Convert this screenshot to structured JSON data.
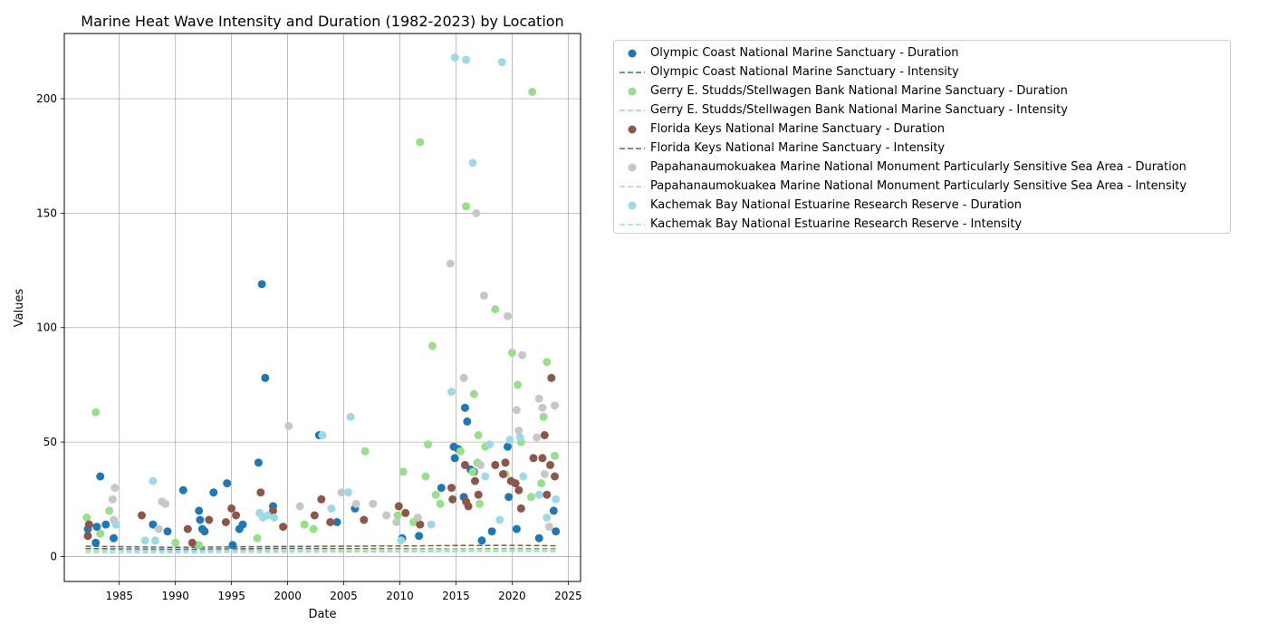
{
  "chart_data": {
    "type": "scatter",
    "title": "Marine Heat Wave Intensity and Duration (1982-2023) by Location",
    "xlabel": "Date",
    "ylabel": "Values",
    "xlim": [
      1980.1,
      2026.1
    ],
    "ylim": [
      -10.9,
      228.5
    ],
    "xticks": [
      1985,
      1990,
      1995,
      2000,
      2005,
      2010,
      2015,
      2020,
      2025
    ],
    "yticks": [
      0,
      50,
      100,
      150,
      200
    ],
    "grid": true,
    "legend_position": "outside-right",
    "series": [
      {
        "name": "Olympic Coast National Marine Sanctuary - Duration",
        "kind": "points",
        "color": "#1f77b4",
        "x": [
          1982.2,
          1982.9,
          1983.0,
          1983.3,
          1983.8,
          1984.5,
          1988.0,
          1989.3,
          1990.7,
          1992.1,
          1992.2,
          1992.4,
          1992.6,
          1993.4,
          1994.6,
          1995.1,
          1995.7,
          1996.0,
          1997.4,
          1997.7,
          1998.0,
          1998.7,
          2002.8,
          2004.4,
          2006.0,
          2010.2,
          2011.7,
          2013.7,
          2014.8,
          2014.9,
          2015.2,
          2015.7,
          2015.8,
          2016.0,
          2016.3,
          2016.6,
          2017.3,
          2018.2,
          2019.6,
          2019.7,
          2020.4,
          2022.4,
          2023.7,
          2023.9
        ],
        "y": [
          12,
          6,
          13,
          35,
          14,
          8,
          14,
          11,
          29,
          20,
          16,
          12,
          11,
          28,
          32,
          5,
          12,
          14,
          41,
          119,
          78,
          22,
          53,
          15,
          21,
          8,
          9,
          30,
          48,
          43,
          47,
          26,
          65,
          59,
          38,
          37,
          7,
          11,
          48,
          26,
          12,
          8,
          20,
          11
        ]
      },
      {
        "name": "Olympic Coast National Marine Sanctuary - Intensity",
        "kind": "line",
        "color": "#1f77b4",
        "x": [
          1982,
          1990,
          2000,
          2010,
          2015,
          2020,
          2024
        ],
        "y": [
          3.5,
          3.2,
          3.6,
          3.4,
          3.3,
          3.5,
          3.4
        ]
      },
      {
        "name": "Gerry E. Studds/Stellwagen Bank National Marine Sanctuary - Duration",
        "kind": "points",
        "color": "#98df8a",
        "x": [
          1982.1,
          1982.9,
          1983.3,
          1984.1,
          1990.0,
          1992.1,
          1997.3,
          2001.5,
          2002.3,
          2006.9,
          2009.8,
          2010.3,
          2011.2,
          2011.8,
          2012.3,
          2012.5,
          2012.9,
          2013.2,
          2013.6,
          2015.4,
          2015.9,
          2016.5,
          2016.6,
          2016.9,
          2017.0,
          2017.1,
          2017.6,
          2018.5,
          2019.4,
          2020.0,
          2020.5,
          2020.8,
          2021.7,
          2021.8,
          2022.6,
          2022.8,
          2023.1,
          2023.8
        ],
        "y": [
          17,
          63,
          10,
          20,
          6,
          5,
          8,
          14,
          12,
          46,
          18,
          37,
          15,
          181,
          35,
          49,
          92,
          27,
          23,
          46,
          153,
          37,
          71,
          41,
          53,
          23,
          48,
          108,
          36,
          89,
          75,
          50,
          26,
          203,
          32,
          61,
          85,
          44
        ]
      },
      {
        "name": "Gerry E. Studds/Stellwagen Bank National Marine Sanctuary - Intensity",
        "kind": "line",
        "color": "#98df8a",
        "x": [
          1982,
          1990,
          2000,
          2010,
          2015,
          2020,
          2024
        ],
        "y": [
          3.0,
          2.6,
          3.0,
          3.1,
          3.2,
          3.3,
          3.2
        ]
      },
      {
        "name": "Florida Keys National Marine Sanctuary - Duration",
        "kind": "points",
        "color": "#8c564b",
        "x": [
          1982.2,
          1982.3,
          1987.0,
          1991.1,
          1991.5,
          1993.0,
          1994.5,
          1995.0,
          1995.4,
          1997.6,
          1998.7,
          1999.6,
          2002.4,
          2003.0,
          2003.8,
          2006.8,
          2009.9,
          2010.5,
          2011.8,
          2014.6,
          2014.7,
          2015.8,
          2015.9,
          2016.1,
          2016.7,
          2017.0,
          2018.5,
          2019.2,
          2019.4,
          2019.9,
          2020.3,
          2020.6,
          2020.8,
          2021.9,
          2022.7,
          2022.9,
          2023.1,
          2023.4,
          2023.5,
          2023.8
        ],
        "y": [
          9,
          14,
          18,
          12,
          6,
          16,
          15,
          21,
          18,
          28,
          20,
          13,
          18,
          25,
          15,
          16,
          22,
          19,
          14,
          30,
          25,
          40,
          24,
          22,
          33,
          27,
          40,
          36,
          41,
          33,
          32,
          29,
          21,
          43,
          43,
          53,
          27,
          40,
          78,
          35
        ]
      },
      {
        "name": "Florida Keys National Marine Sanctuary - Intensity",
        "kind": "line",
        "color": "#8c564b",
        "x": [
          1982,
          1990,
          2000,
          2010,
          2015,
          2020,
          2024
        ],
        "y": [
          4.5,
          4.0,
          4.4,
          4.6,
          4.8,
          4.9,
          4.7
        ]
      },
      {
        "name": "Papahanaumokuakea Marine National Monument Particularly Sensitive Sea Area - Duration",
        "kind": "points",
        "color": "#c7c7c7",
        "x": [
          1984.4,
          1984.5,
          1984.6,
          1988.5,
          1988.8,
          1989.1,
          2000.1,
          2001.1,
          2004.8,
          2006.1,
          2007.6,
          2008.8,
          2009.7,
          2011.6,
          2014.5,
          2015.7,
          2016.8,
          2017.2,
          2017.5,
          2019.6,
          2020.4,
          2020.6,
          2020.9,
          2022.2,
          2022.4,
          2022.7,
          2022.9,
          2023.3,
          2023.8
        ],
        "y": [
          25,
          16,
          30,
          12,
          24,
          23,
          57,
          22,
          28,
          23,
          23,
          18,
          15,
          17,
          128,
          78,
          150,
          40,
          114,
          105,
          64,
          55,
          88,
          52,
          69,
          65,
          36,
          13,
          66
        ]
      },
      {
        "name": "Papahanaumokuakea Marine National Monument Particularly Sensitive Sea Area - Intensity",
        "kind": "line",
        "color": "#c7c7c7",
        "x": [
          1982,
          1990,
          2000,
          2010,
          2015,
          2020,
          2024
        ],
        "y": [
          2.2,
          2.0,
          2.3,
          2.4,
          2.5,
          2.6,
          2.5
        ]
      },
      {
        "name": "Kachemak Bay National Estuarine Research Reserve - Duration",
        "kind": "points",
        "color": "#9edae5",
        "x": [
          1984.7,
          1987.3,
          1988.0,
          1988.2,
          1997.5,
          1997.8,
          1998.2,
          1998.8,
          2003.1,
          2003.9,
          2005.4,
          2005.6,
          2010.1,
          2012.8,
          2014.6,
          2014.9,
          2015.9,
          2016.5,
          2017.6,
          2018.0,
          2018.9,
          2019.1,
          2019.8,
          2020.7,
          2021.0,
          2022.4,
          2023.1,
          2023.9
        ],
        "y": [
          14,
          7,
          33,
          7,
          19,
          17,
          18,
          17,
          53,
          21,
          28,
          61,
          7,
          14,
          72,
          218,
          217,
          172,
          35,
          49,
          16,
          216,
          51,
          52,
          35,
          27,
          17,
          25
        ]
      },
      {
        "name": "Kachemak Bay National Estuarine Research Reserve - Intensity",
        "kind": "line",
        "color": "#9edae5",
        "x": [
          1982,
          1990,
          2000,
          2010,
          2015,
          2020,
          2024
        ],
        "y": [
          1.8,
          1.7,
          1.9,
          2.0,
          2.1,
          2.2,
          2.1
        ]
      }
    ]
  }
}
